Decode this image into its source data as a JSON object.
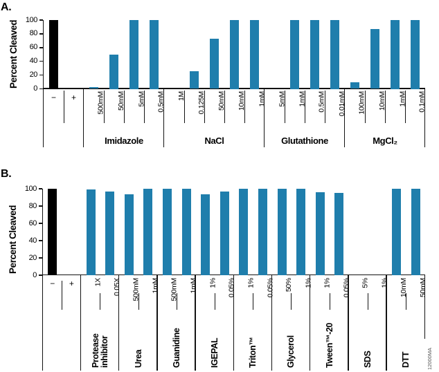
{
  "watermark": "12000MA",
  "colors": {
    "bar_fill": "#1f7eac",
    "control_bar_fill": "#000000",
    "line": "#121212",
    "watermark_text": "#555555"
  },
  "chart_data": [
    {
      "type": "bar",
      "panel": "A.",
      "title": "",
      "xlabel": "",
      "ylabel": "Percent Cleaved",
      "ylim": [
        0,
        100
      ],
      "yticks": [
        0,
        20,
        40,
        60,
        80,
        100
      ],
      "grid": false,
      "legend": "none",
      "groups": [
        {
          "name": "",
          "horizontal_labels": true,
          "categories": [
            "−",
            "+"
          ],
          "values": [
            100,
            0
          ]
        },
        {
          "name": "Imidazole",
          "categories": [
            "500mM",
            "50mM",
            "5mM",
            "0.5mM"
          ],
          "values": [
            3,
            50,
            100,
            100
          ]
        },
        {
          "name": "NaCl",
          "categories": [
            "1M",
            "0.125M",
            "50mM",
            "10mM",
            "1mM"
          ],
          "values": [
            0,
            26,
            73,
            100,
            100
          ]
        },
        {
          "name": "Glutathione",
          "categories": [
            "5mM",
            "1mM",
            "0.5mM",
            "0.01mM"
          ],
          "values": [
            0,
            100,
            100,
            100
          ]
        },
        {
          "name": "MgCl₂",
          "categories": [
            "100mM",
            "10mM",
            "1mM",
            "0.1mM"
          ],
          "values": [
            10,
            87,
            100,
            100
          ]
        }
      ]
    },
    {
      "type": "bar",
      "panel": "B.",
      "title": "",
      "xlabel": "",
      "ylabel": "Percent Cleaved",
      "ylim": [
        0,
        100
      ],
      "yticks": [
        0,
        20,
        40,
        60,
        80,
        100
      ],
      "grid": false,
      "legend": "none",
      "groups": [
        {
          "name": "",
          "horizontal_labels": true,
          "categories": [
            "−",
            "+"
          ],
          "values": [
            100,
            0
          ]
        },
        {
          "name": "Protease\ninhibitor",
          "categories": [
            "1X",
            "0.05X"
          ],
          "values": [
            99,
            97
          ]
        },
        {
          "name": "Urea",
          "categories": [
            "500mM",
            "1mM"
          ],
          "values": [
            94,
            100
          ]
        },
        {
          "name": "Guanidine",
          "categories": [
            "500mM",
            "1mM"
          ],
          "values": [
            100,
            100
          ]
        },
        {
          "name": "IGEPAL",
          "categories": [
            "1%",
            "0.05%"
          ],
          "values": [
            94,
            97
          ]
        },
        {
          "name": "Triton™",
          "categories": [
            "1%",
            "0.05%"
          ],
          "values": [
            100,
            100
          ]
        },
        {
          "name": "Glycerol",
          "categories": [
            "50%",
            "1%"
          ],
          "values": [
            100,
            100
          ]
        },
        {
          "name": "Tween™-20",
          "categories": [
            "1%",
            "0.05%"
          ],
          "values": [
            96,
            95
          ]
        },
        {
          "name": "SDS",
          "categories": [
            "5%",
            "1%"
          ],
          "values": [
            0,
            0
          ]
        },
        {
          "name": "DTT",
          "categories": [
            "10mM",
            "50mM"
          ],
          "values": [
            100,
            100
          ]
        }
      ]
    }
  ]
}
